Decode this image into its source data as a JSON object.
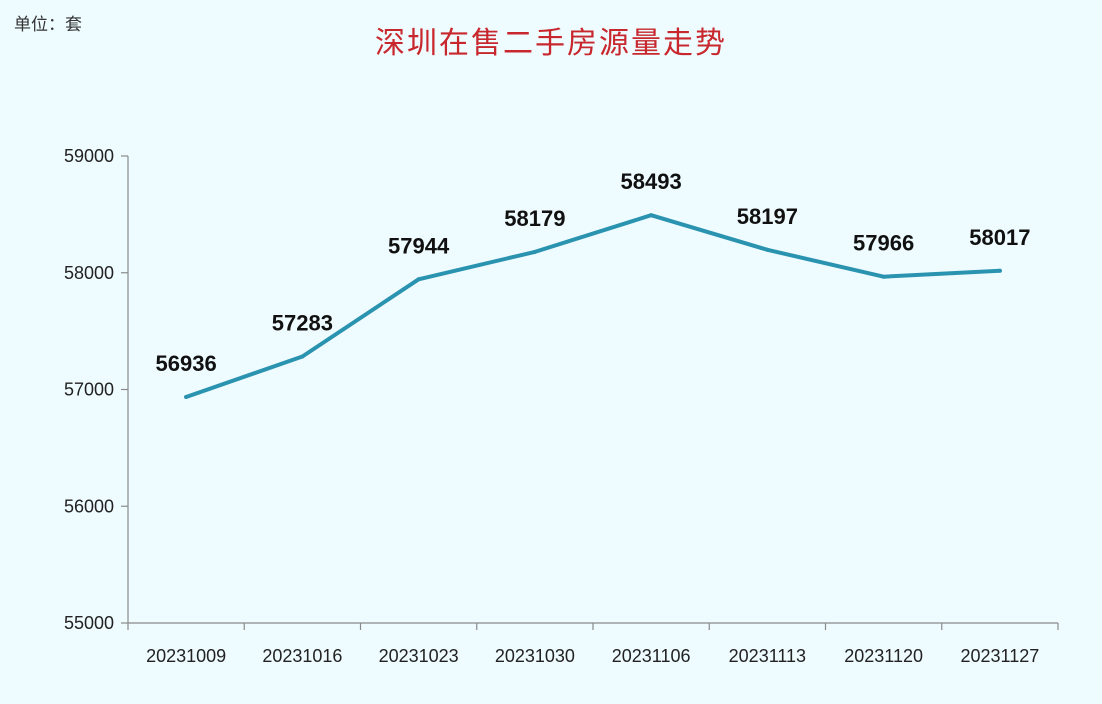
{
  "unit_label": "单位：套",
  "chart_data": {
    "type": "line",
    "title": "深圳在售二手房源量走势",
    "xlabel": "",
    "ylabel": "",
    "categories": [
      "20231009",
      "20231016",
      "20231023",
      "20231030",
      "20231106",
      "20231113",
      "20231120",
      "20231127"
    ],
    "series": [
      {
        "values": [
          56936,
          57283,
          57944,
          58179,
          58493,
          58197,
          57966,
          58017
        ],
        "color": "#2a93b0"
      }
    ],
    "ylim": [
      55000,
      59000
    ],
    "yticks": [
      55000,
      56000,
      57000,
      58000,
      59000
    ],
    "grid": false,
    "legend": "none",
    "data_labels": true
  }
}
